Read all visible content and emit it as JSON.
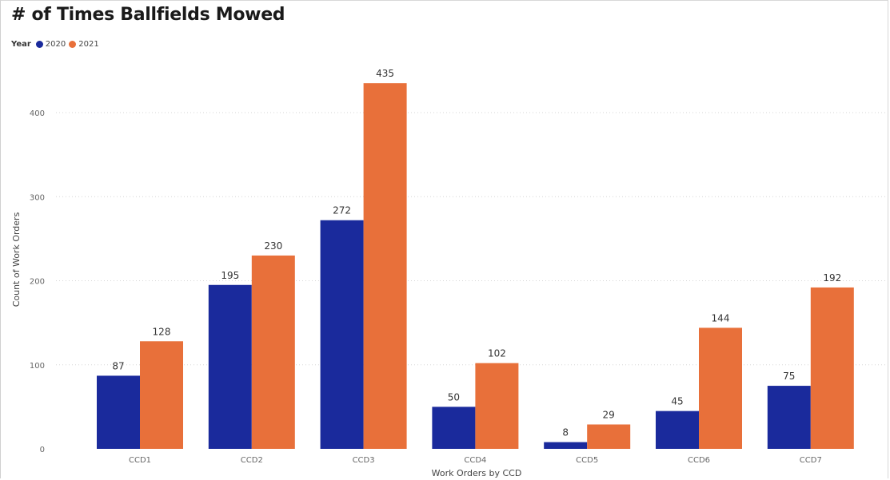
{
  "chart_data": {
    "type": "bar",
    "title": "# of Times Ballfields Mowed",
    "legend_title": "Year",
    "legend_position": "top-left",
    "xlabel": "Work Orders by CCD",
    "ylabel": "Count of Work Orders",
    "categories": [
      "CCD1",
      "CCD2",
      "CCD3",
      "CCD4",
      "CCD5",
      "CCD6",
      "CCD7"
    ],
    "series": [
      {
        "name": "2020",
        "color": "#1a2a9c",
        "values": [
          87,
          195,
          272,
          50,
          8,
          45,
          75
        ]
      },
      {
        "name": "2021",
        "color": "#e8703a",
        "values": [
          128,
          230,
          435,
          102,
          29,
          144,
          192
        ]
      }
    ],
    "yticks": [
      0,
      100,
      200,
      300,
      400
    ],
    "ylim": [
      0,
      435
    ],
    "grid": true,
    "data_labels": true
  }
}
